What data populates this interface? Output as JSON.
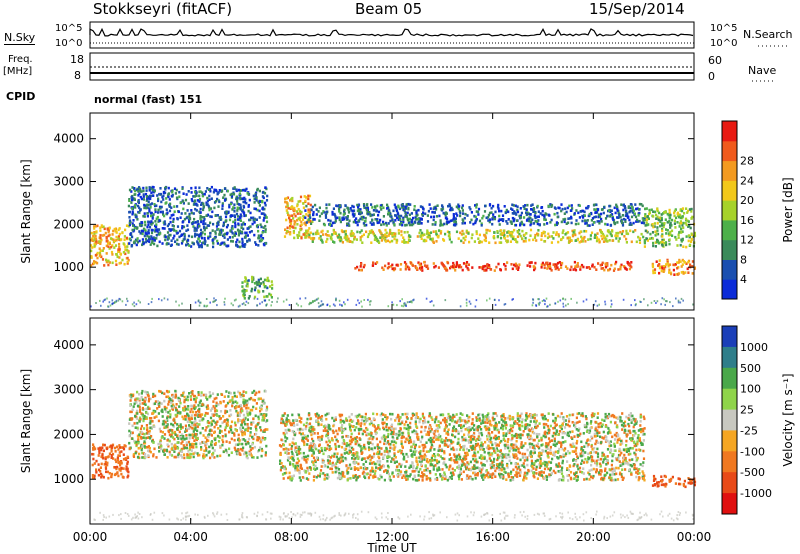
{
  "header": {
    "station": "Stokkseyri (fitACF)",
    "beam": "Beam 05",
    "date": "15/Sep/2014"
  },
  "strips": {
    "nsky_label": "N.Sky",
    "nsky_ticks": [
      "10^5",
      "10^0"
    ],
    "nsearch_label": "N.Search",
    "nsearch_ticks": [
      "10^5",
      "10^0"
    ],
    "freq_label_top": "Freq.",
    "freq_label_bottom": "[MHz]",
    "freq_ticks": [
      "18",
      "8"
    ],
    "nave_label": "Nave",
    "nave_ticks": [
      "60",
      "0"
    ],
    "cpid_label": "CPID",
    "cpid_value": "normal (fast) 151"
  },
  "colors": {
    "power": [
      "#0b2bd8",
      "#1a4fb0",
      "#3a8a5a",
      "#4db04a",
      "#a6d22a",
      "#f2c81a",
      "#f39a20",
      "#f05a1c",
      "#e81a12"
    ],
    "velocity": [
      "#1b3fb8",
      "#2f7e8a",
      "#4aa84a",
      "#8fd44a",
      "#c8c8c0",
      "#f5a623",
      "#f07820",
      "#e84a18",
      "#e01010"
    ]
  },
  "chart_data": [
    {
      "type": "heatmap",
      "name": "power",
      "ylabel": "Slant Range [km]",
      "xlabel": "Time UT",
      "xticks": [
        "00:00",
        "04:00",
        "08:00",
        "12:00",
        "16:00",
        "20:00",
        "00:00"
      ],
      "x_hours": [
        0,
        4,
        8,
        12,
        16,
        20,
        24
      ],
      "yticks": [
        1000,
        2000,
        3000,
        4000
      ],
      "ylim": [
        0,
        4600
      ],
      "colorbar_label": "Power [dB]",
      "colorbar_ticks": [
        "4",
        "8",
        "12",
        "16",
        "20",
        "24",
        "28"
      ],
      "echo_bands": [
        {
          "start_hour": 0.0,
          "end_hour": 1.5,
          "range_km": [
            1050,
            2000
          ],
          "power_db": 22
        },
        {
          "start_hour": 1.5,
          "end_hour": 7.0,
          "range_km": [
            1500,
            2900
          ],
          "power_db": 6
        },
        {
          "start_hour": 6.0,
          "end_hour": 7.2,
          "range_km": [
            300,
            800
          ],
          "power_db": 12
        },
        {
          "start_hour": 7.7,
          "end_hour": 8.8,
          "range_km": [
            1700,
            2700
          ],
          "power_db": 22
        },
        {
          "start_hour": 8.5,
          "end_hour": 22.0,
          "range_km": [
            1600,
            1900
          ],
          "power_db": 18
        },
        {
          "start_hour": 8.5,
          "end_hour": 22.0,
          "range_km": [
            2000,
            2500
          ],
          "power_db": 6
        },
        {
          "start_hour": 10.5,
          "end_hour": 21.5,
          "range_km": [
            950,
            1150
          ],
          "power_db": 28
        },
        {
          "start_hour": 22.0,
          "end_hour": 24.0,
          "range_km": [
            1500,
            2400
          ],
          "power_db": 14
        },
        {
          "start_hour": 22.3,
          "end_hour": 24.0,
          "range_km": [
            850,
            1200
          ],
          "power_db": 24
        }
      ]
    },
    {
      "type": "heatmap",
      "name": "velocity",
      "ylabel": "Slant Range [km]",
      "xlabel": "Time UT",
      "xticks": [
        "00:00",
        "04:00",
        "08:00",
        "12:00",
        "16:00",
        "20:00",
        "00:00"
      ],
      "x_hours": [
        0,
        4,
        8,
        12,
        16,
        20,
        24
      ],
      "yticks": [
        1000,
        2000,
        3000,
        4000
      ],
      "ylim": [
        0,
        4600
      ],
      "colorbar_label": "Velocity [m s⁻¹]",
      "colorbar_ticks": [
        "1000",
        "500",
        "100",
        "25",
        "-25",
        "-100",
        "-500",
        "-1000"
      ],
      "echo_bands": [
        {
          "start_hour": 0.0,
          "end_hour": 1.5,
          "range_km": [
            1050,
            1800
          ],
          "velocity_ms": -300
        },
        {
          "start_hour": 1.5,
          "end_hour": 7.0,
          "range_km": [
            1500,
            3000
          ],
          "velocity_ms": 0
        },
        {
          "start_hour": 7.5,
          "end_hour": 22.0,
          "range_km": [
            1000,
            2500
          ],
          "velocity_ms": 0
        },
        {
          "start_hour": 22.3,
          "end_hour": 24.0,
          "range_km": [
            850,
            1100
          ],
          "velocity_ms": -300
        }
      ]
    }
  ]
}
